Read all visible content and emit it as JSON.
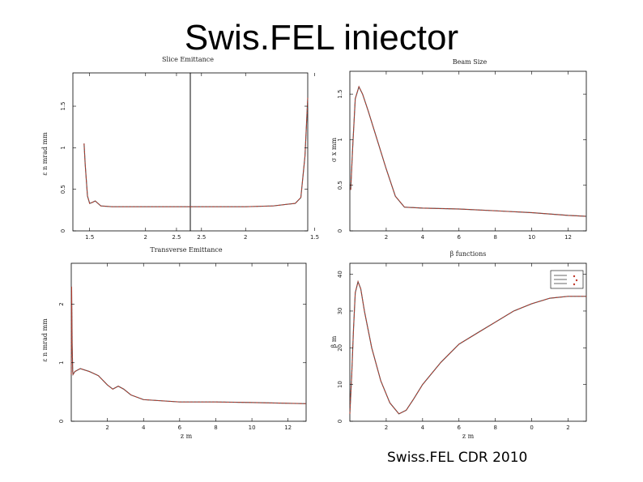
{
  "title": "Swis.FEL iniector",
  "subtitle": "Swiss.FEL CDR 2010",
  "colors": {
    "curve_red": "#c0392b",
    "curve_dark": "#555555",
    "frame": "#000000"
  },
  "chart_data": [
    {
      "type": "line",
      "title": "Slice Emittance",
      "xlabel": "Transverse Emittance",
      "ylabel": "ε n  mrad mm",
      "panels": [
        {
          "xlim": [
            1.35,
            2.4
          ],
          "x_ticks": [
            "1.5",
            "2",
            "2.5"
          ],
          "x": [
            1.45,
            1.46,
            1.48,
            1.5,
            1.52,
            1.55,
            1.6,
            1.7,
            2.0,
            2.4
          ],
          "y": [
            1.05,
            0.8,
            0.42,
            0.33,
            0.34,
            0.36,
            0.3,
            0.29,
            0.29,
            0.29
          ]
        },
        {
          "xlim": [
            2.4,
            1.55
          ],
          "x_ticks": [
            "2.5",
            "2",
            "1.5"
          ],
          "x": [
            2.4,
            2.0,
            1.8,
            1.7,
            1.64,
            1.6,
            1.57,
            1.55
          ],
          "y": [
            0.29,
            0.29,
            0.3,
            0.32,
            0.33,
            0.4,
            0.9,
            1.6
          ]
        }
      ],
      "ylim": [
        0,
        1.9
      ],
      "y_ticks": [
        "0",
        "0.5",
        "1",
        "1.5"
      ]
    },
    {
      "type": "line",
      "title": "Beam Size",
      "xlabel": "β functions",
      "ylabel": "σ x  mm",
      "xlim": [
        0,
        13
      ],
      "ylim": [
        0,
        1.75
      ],
      "x_ticks": [
        "2",
        "4",
        "6",
        "8",
        "10",
        "12"
      ],
      "y_ticks": [
        "0",
        "0.5",
        "1",
        "1.5"
      ],
      "x": [
        0.05,
        0.15,
        0.3,
        0.5,
        0.7,
        1.0,
        1.5,
        2.0,
        2.5,
        3.0,
        4.0,
        6.0,
        8.0,
        10.0,
        12.0,
        13.0
      ],
      "y": [
        0.45,
        0.9,
        1.45,
        1.58,
        1.5,
        1.32,
        1.0,
        0.68,
        0.38,
        0.26,
        0.25,
        0.24,
        0.22,
        0.2,
        0.17,
        0.16
      ]
    },
    {
      "type": "line",
      "title": "",
      "xlabel": "z  m",
      "ylabel": "ε n  mrad mm",
      "xlim": [
        0,
        13
      ],
      "ylim": [
        0,
        2.7
      ],
      "x_ticks": [
        "2",
        "4",
        "6",
        "8",
        "10",
        "12"
      ],
      "y_ticks": [
        "0",
        "1",
        "2"
      ],
      "x": [
        0.0,
        0.02,
        0.05,
        0.08,
        0.1,
        0.2,
        0.5,
        1.0,
        1.5,
        2.0,
        2.3,
        2.6,
        2.9,
        3.3,
        4.0,
        6.0,
        8.0,
        10.0,
        13.0
      ],
      "y": [
        0.8,
        2.3,
        1.3,
        0.85,
        0.8,
        0.85,
        0.9,
        0.85,
        0.78,
        0.62,
        0.55,
        0.6,
        0.55,
        0.45,
        0.37,
        0.33,
        0.33,
        0.32,
        0.3
      ]
    },
    {
      "type": "line",
      "title": "",
      "xlabel": "z  m",
      "ylabel": "β  m",
      "xlim": [
        0,
        13
      ],
      "ylim": [
        0,
        43
      ],
      "x_ticks": [
        "2",
        "4",
        "6",
        "8",
        "0",
        "2"
      ],
      "y_ticks": [
        "0",
        "10",
        "20",
        "30",
        "40"
      ],
      "x": [
        0.0,
        0.1,
        0.2,
        0.3,
        0.45,
        0.6,
        0.8,
        1.2,
        1.7,
        2.2,
        2.7,
        3.1,
        3.5,
        4.0,
        5.0,
        6.0,
        7.0,
        8.0,
        9.0,
        10.0,
        11.0,
        12.0,
        13.0
      ],
      "y": [
        2,
        12,
        25,
        35,
        38,
        36,
        30,
        20,
        11,
        5,
        2,
        3,
        6,
        10,
        16,
        21,
        24,
        27,
        30,
        32,
        33.5,
        34,
        34
      ]
    }
  ]
}
